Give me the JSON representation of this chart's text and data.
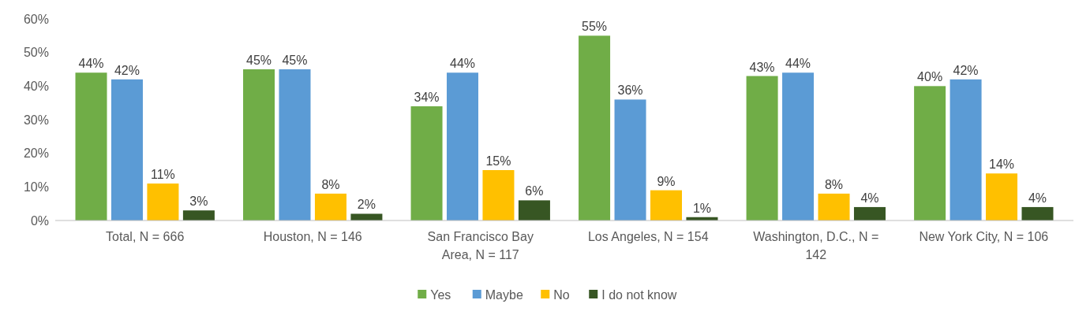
{
  "chart_data": {
    "type": "bar",
    "categories": [
      "Total, N = 666",
      "Houston, N = 146",
      "San Francisco Bay Area, N = 117",
      "Los Angeles, N = 154",
      "Washington, D.C., N = 142",
      "New York City, N = 106"
    ],
    "series": [
      {
        "name": "Yes",
        "color": "#70ad47",
        "values": [
          44,
          45,
          34,
          55,
          43,
          40
        ],
        "value_labels": [
          "44%",
          "45%",
          "34%",
          "55%",
          "43%",
          "40%"
        ]
      },
      {
        "name": "Maybe",
        "color": "#5b9bd5",
        "values": [
          42,
          45,
          44,
          36,
          44,
          42
        ],
        "value_labels": [
          "42%",
          "45%",
          "44%",
          "36%",
          "44%",
          "42%"
        ]
      },
      {
        "name": "No",
        "color": "#ffc000",
        "values": [
          11,
          8,
          15,
          9,
          8,
          14
        ],
        "value_labels": [
          "11%",
          "8%",
          "15%",
          "9%",
          "8%",
          "14%"
        ]
      },
      {
        "name": "I do not know",
        "color": "#375623",
        "values": [
          3,
          2,
          6,
          1,
          4,
          4
        ],
        "value_labels": [
          "3%",
          "2%",
          "6%",
          "1%",
          "4%",
          "4%"
        ]
      }
    ],
    "ylim": [
      0,
      60
    ],
    "yticks": [
      {
        "value": 0,
        "label": "0%"
      },
      {
        "value": 10,
        "label": "10%"
      },
      {
        "value": 20,
        "label": "20%"
      },
      {
        "value": 30,
        "label": "30%"
      },
      {
        "value": 40,
        "label": "40%"
      },
      {
        "value": 50,
        "label": "50%"
      },
      {
        "value": 60,
        "label": "60%"
      }
    ],
    "legend": "bottom"
  }
}
